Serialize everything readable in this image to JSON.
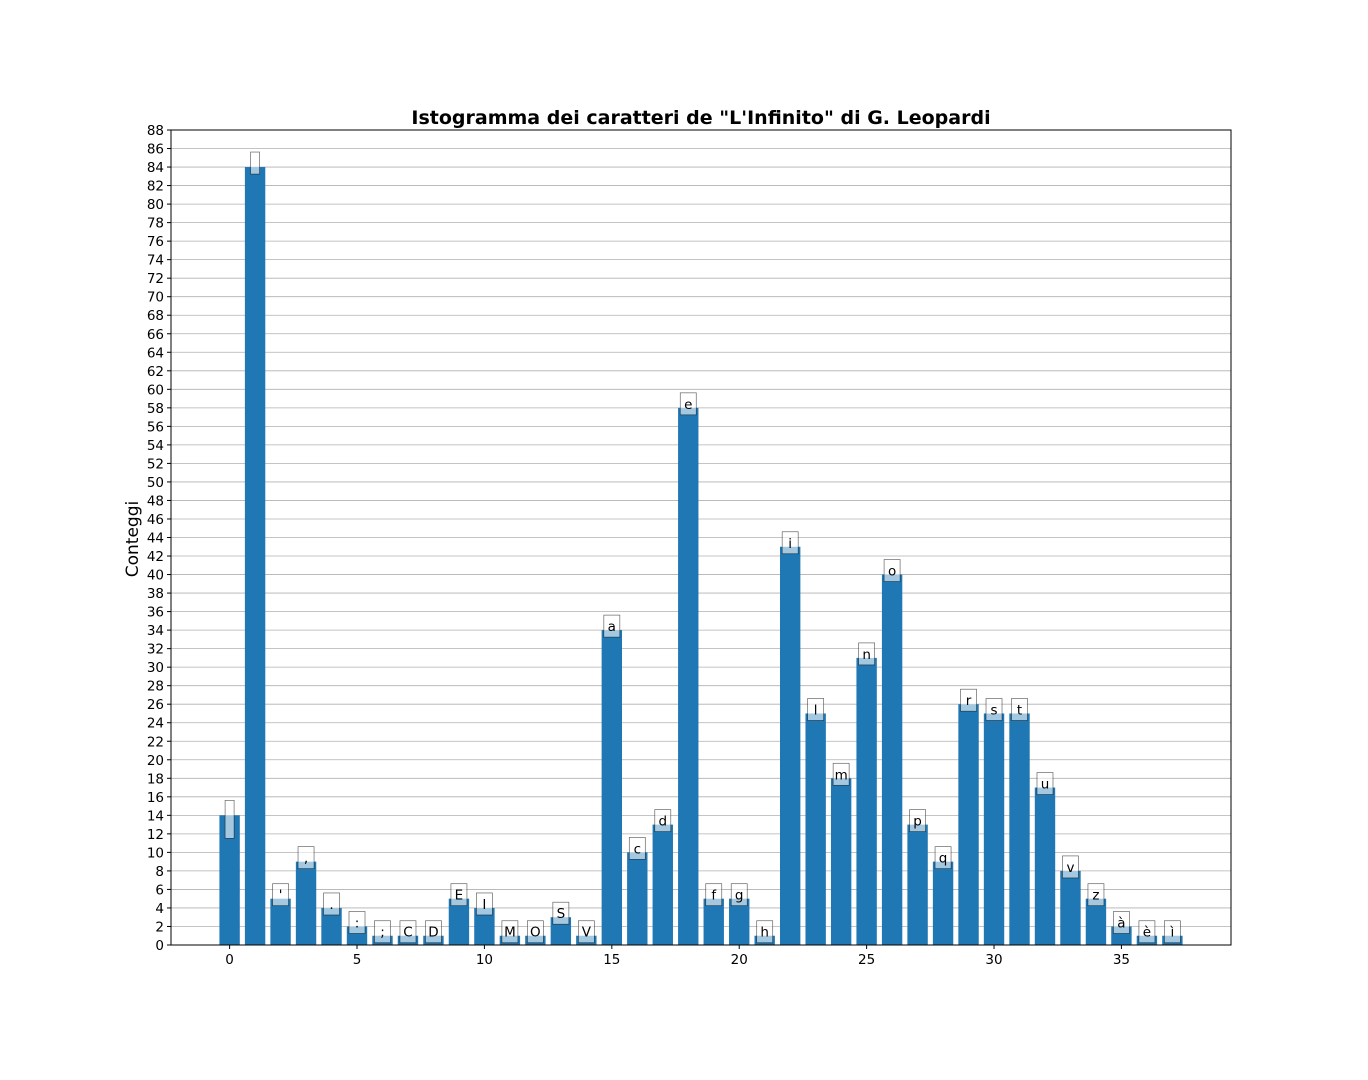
{
  "chart_data": {
    "type": "bar",
    "title": "Istogramma dei caratteri de \"L'Infinito\" di G. Leopardi",
    "xlabel": "",
    "ylabel": "Conteggi",
    "xlim": [
      -2.3,
      39.3
    ],
    "ylim": [
      0,
      88
    ],
    "xticks": [
      0,
      5,
      10,
      15,
      20,
      25,
      30,
      35
    ],
    "ytick_step": 2,
    "grid": "y",
    "bar_color": "#1f77b4",
    "label_box_color": "#ffffff",
    "bars": [
      {
        "x": 0,
        "label": " ",
        "value": 14
      },
      {
        "x": 1,
        "label": "\n",
        "value": 84
      },
      {
        "x": 2,
        "label": "'",
        "value": 5
      },
      {
        "x": 3,
        "label": ",",
        "value": 9
      },
      {
        "x": 4,
        "label": ".",
        "value": 4
      },
      {
        "x": 5,
        "label": ":",
        "value": 2
      },
      {
        "x": 6,
        "label": ";",
        "value": 1
      },
      {
        "x": 7,
        "label": "C",
        "value": 1
      },
      {
        "x": 8,
        "label": "D",
        "value": 1
      },
      {
        "x": 9,
        "label": "E",
        "value": 5
      },
      {
        "x": 10,
        "label": "I",
        "value": 4
      },
      {
        "x": 11,
        "label": "M",
        "value": 1
      },
      {
        "x": 12,
        "label": "O",
        "value": 1
      },
      {
        "x": 13,
        "label": "S",
        "value": 3
      },
      {
        "x": 14,
        "label": "V",
        "value": 1
      },
      {
        "x": 15,
        "label": "a",
        "value": 34
      },
      {
        "x": 16,
        "label": "c",
        "value": 10
      },
      {
        "x": 17,
        "label": "d",
        "value": 13
      },
      {
        "x": 18,
        "label": "e",
        "value": 58
      },
      {
        "x": 19,
        "label": "f",
        "value": 5
      },
      {
        "x": 20,
        "label": "g",
        "value": 5
      },
      {
        "x": 21,
        "label": "h",
        "value": 1
      },
      {
        "x": 22,
        "label": "i",
        "value": 43
      },
      {
        "x": 23,
        "label": "l",
        "value": 25
      },
      {
        "x": 24,
        "label": "m",
        "value": 18
      },
      {
        "x": 25,
        "label": "n",
        "value": 31
      },
      {
        "x": 26,
        "label": "o",
        "value": 40
      },
      {
        "x": 27,
        "label": "p",
        "value": 13
      },
      {
        "x": 28,
        "label": "q",
        "value": 9
      },
      {
        "x": 29,
        "label": "r",
        "value": 26
      },
      {
        "x": 30,
        "label": "s",
        "value": 25
      },
      {
        "x": 31,
        "label": "t",
        "value": 25
      },
      {
        "x": 32,
        "label": "u",
        "value": 17
      },
      {
        "x": 33,
        "label": "v",
        "value": 8
      },
      {
        "x": 34,
        "label": "z",
        "value": 5
      },
      {
        "x": 35,
        "label": "à",
        "value": 2
      },
      {
        "x": 36,
        "label": "è",
        "value": 1
      },
      {
        "x": 37,
        "label": "ì",
        "value": 1
      }
    ]
  }
}
